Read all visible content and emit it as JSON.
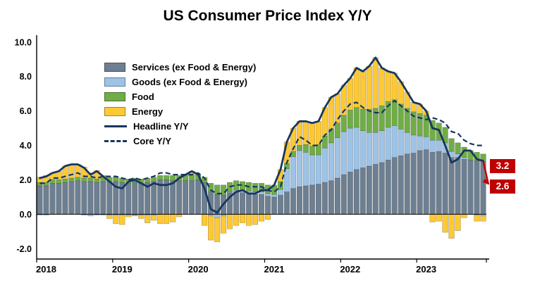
{
  "chart_data": {
    "type": "bar",
    "subtype": "stacked-bar-with-lines",
    "title": "US Consumer Price Index Y/Y",
    "xlabel": "",
    "ylabel": "",
    "ylim": [
      -2.6,
      10.4
    ],
    "y_tick_values": [
      10,
      8,
      6,
      4,
      2,
      0,
      -2
    ],
    "y_tick_labels": [
      "10.0",
      "8.0",
      "6.0",
      "4.0",
      "2.0",
      "0.0",
      "-2.0"
    ],
    "x_tick_labels": [
      "2018",
      "2019",
      "2020",
      "2021",
      "2022",
      "2023"
    ],
    "x_tick_month_index": [
      0,
      12,
      24,
      36,
      48,
      60
    ],
    "x_frequency": "monthly",
    "grid": "off",
    "legend_position": "upper-left-inside",
    "stack_series": [
      {
        "name": "Services (ex Food & Energy)",
        "color": "#6d7f91",
        "values": [
          1.65,
          1.65,
          1.8,
          1.8,
          1.85,
          1.9,
          1.95,
          1.9,
          1.9,
          1.85,
          1.9,
          1.9,
          1.9,
          1.85,
          1.8,
          1.85,
          1.8,
          1.85,
          1.9,
          2.0,
          2.0,
          1.95,
          1.95,
          1.95,
          1.95,
          2.0,
          1.85,
          1.3,
          1.15,
          1.1,
          1.25,
          1.3,
          1.25,
          1.2,
          1.15,
          1.15,
          1.05,
          1.0,
          1.1,
          1.3,
          1.5,
          1.6,
          1.65,
          1.7,
          1.75,
          1.85,
          1.95,
          2.1,
          2.3,
          2.45,
          2.6,
          2.7,
          2.8,
          2.9,
          3.0,
          3.15,
          3.3,
          3.4,
          3.5,
          3.55,
          3.7,
          3.75,
          3.6,
          3.65,
          3.55,
          3.3,
          3.3,
          3.2,
          3.15,
          3.1,
          3.05
        ]
      },
      {
        "name": "Goods (ex Food & Energy)",
        "color": "#9dc3e6",
        "values": [
          -0.05,
          -0.05,
          0.0,
          0.0,
          0.0,
          0.0,
          0.0,
          -0.05,
          -0.1,
          -0.05,
          -0.05,
          -0.05,
          -0.05,
          -0.05,
          -0.05,
          -0.05,
          -0.05,
          -0.05,
          -0.05,
          0.0,
          0.0,
          0.0,
          0.0,
          0.0,
          0.0,
          0.0,
          0.0,
          -0.1,
          -0.2,
          -0.1,
          0.05,
          0.1,
          0.15,
          0.15,
          0.15,
          0.15,
          0.15,
          0.15,
          0.35,
          1.35,
          1.85,
          2.1,
          1.95,
          1.75,
          1.7,
          2.0,
          2.2,
          2.35,
          2.5,
          2.55,
          2.45,
          2.15,
          1.95,
          1.85,
          1.85,
          1.9,
          1.85,
          1.55,
          1.25,
          1.05,
          0.85,
          0.75,
          0.7,
          0.65,
          0.6,
          0.35,
          0.2,
          0.1,
          0.0,
          -0.05,
          -0.1
        ]
      },
      {
        "name": "Food",
        "color": "#70ad47",
        "values": [
          0.2,
          0.2,
          0.2,
          0.2,
          0.2,
          0.2,
          0.2,
          0.2,
          0.2,
          0.2,
          0.2,
          0.25,
          0.25,
          0.25,
          0.25,
          0.25,
          0.25,
          0.25,
          0.25,
          0.25,
          0.25,
          0.3,
          0.3,
          0.3,
          0.3,
          0.3,
          0.3,
          0.5,
          0.55,
          0.6,
          0.55,
          0.55,
          0.5,
          0.5,
          0.5,
          0.5,
          0.5,
          0.5,
          0.45,
          0.3,
          0.3,
          0.3,
          0.45,
          0.5,
          0.6,
          0.7,
          0.8,
          0.85,
          0.95,
          1.05,
          1.15,
          1.25,
          1.35,
          1.4,
          1.45,
          1.5,
          1.5,
          1.45,
          1.4,
          1.35,
          1.3,
          1.25,
          1.15,
          1.0,
          0.9,
          0.75,
          0.65,
          0.6,
          0.55,
          0.5,
          0.45
        ]
      },
      {
        "name": "Energy",
        "color": "#ffc933",
        "values": [
          0.3,
          0.4,
          0.4,
          0.5,
          0.75,
          0.8,
          0.75,
          0.65,
          0.3,
          0.5,
          0.15,
          -0.2,
          -0.5,
          -0.55,
          -0.1,
          -0.05,
          -0.2,
          -0.45,
          -0.3,
          -0.55,
          -0.55,
          -0.45,
          -0.15,
          0.05,
          0.25,
          0.0,
          -0.65,
          -1.4,
          -1.4,
          -1.0,
          -0.85,
          -0.65,
          -0.5,
          -0.65,
          -0.6,
          -0.4,
          -0.3,
          0.05,
          0.7,
          1.25,
          1.35,
          1.4,
          1.35,
          1.35,
          1.35,
          1.65,
          1.85,
          1.7,
          1.75,
          1.85,
          2.3,
          2.2,
          2.5,
          2.95,
          2.2,
          1.75,
          1.55,
          1.3,
          0.95,
          0.55,
          0.55,
          0.25,
          -0.45,
          -0.4,
          -1.05,
          -1.4,
          -0.95,
          -0.2,
          0.0,
          -0.35,
          -0.3
        ]
      }
    ],
    "line_series": [
      {
        "name": "Headline Y/Y",
        "color": "#17375e",
        "dash": "solid",
        "values": [
          2.1,
          2.2,
          2.4,
          2.5,
          2.8,
          2.9,
          2.9,
          2.7,
          2.3,
          2.5,
          2.2,
          1.9,
          1.6,
          1.5,
          1.9,
          2.0,
          1.8,
          1.6,
          1.8,
          1.7,
          1.7,
          1.8,
          2.1,
          2.3,
          2.5,
          2.3,
          1.5,
          0.3,
          0.1,
          0.6,
          1.0,
          1.3,
          1.4,
          1.2,
          1.2,
          1.4,
          1.4,
          1.7,
          2.6,
          4.2,
          5.0,
          5.4,
          5.4,
          5.3,
          5.4,
          6.2,
          6.8,
          7.0,
          7.5,
          7.9,
          8.5,
          8.3,
          8.6,
          9.1,
          8.5,
          8.3,
          8.2,
          7.7,
          7.1,
          6.5,
          6.4,
          6.0,
          5.0,
          4.9,
          4.0,
          3.0,
          3.2,
          3.7,
          3.7,
          3.2,
          3.1
        ]
      },
      {
        "name": "Core Y/Y",
        "color": "#17375e",
        "dash": "dashed",
        "values": [
          1.8,
          1.8,
          2.1,
          2.1,
          2.2,
          2.3,
          2.4,
          2.2,
          2.2,
          2.1,
          2.2,
          2.2,
          2.2,
          2.1,
          2.0,
          2.1,
          2.0,
          2.1,
          2.2,
          2.4,
          2.4,
          2.3,
          2.3,
          2.3,
          2.3,
          2.4,
          2.1,
          1.4,
          1.2,
          1.2,
          1.6,
          1.7,
          1.7,
          1.6,
          1.6,
          1.6,
          1.4,
          1.3,
          1.6,
          3.0,
          3.8,
          4.5,
          4.3,
          4.0,
          4.0,
          4.6,
          4.9,
          5.5,
          6.0,
          6.4,
          6.5,
          6.2,
          6.0,
          5.9,
          5.9,
          6.3,
          6.6,
          6.3,
          6.0,
          5.7,
          5.6,
          5.5,
          5.6,
          5.5,
          5.3,
          4.8,
          4.7,
          4.3,
          4.1,
          4.0,
          4.0
        ]
      }
    ],
    "annotations": [
      {
        "label": "3.2",
        "value": 3.2,
        "bg": "#c00000",
        "fg": "#ffffff"
      },
      {
        "label": "2.6",
        "value": 2.6,
        "bg": "#c00000",
        "fg": "#ffffff"
      }
    ]
  }
}
